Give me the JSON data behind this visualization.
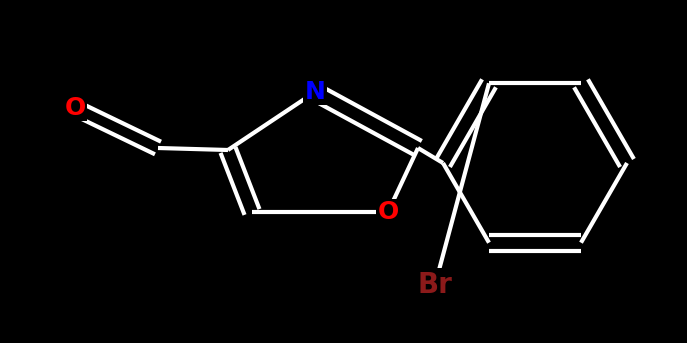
{
  "background_color": "#000000",
  "bond_color": "#ffffff",
  "bond_width": 3.0,
  "N_color": "#0000ff",
  "O_color": "#ff0000",
  "Br_color": "#8b1a1a",
  "font_size_N": 18,
  "font_size_O": 18,
  "font_size_Br": 20,
  "figsize": [
    6.87,
    3.43
  ],
  "dpi": 100,
  "xlim": [
    0,
    6.87
  ],
  "ylim": [
    0,
    3.43
  ]
}
